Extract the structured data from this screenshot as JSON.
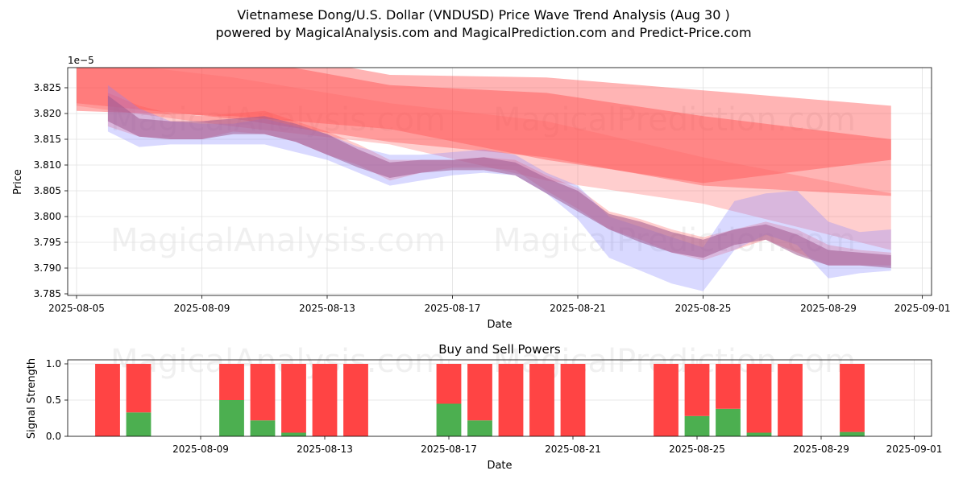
{
  "header": {
    "title": "Vietnamese Dong/U.S. Dollar (VNDUSD) Price Wave Trend Analysis (Aug 30 )",
    "subtitle": "powered by MagicalAnalysis.com and MagicalPrediction.com and Predict-Price.com"
  },
  "watermarks": [
    "MagicalAnalysis.com",
    "MagicalPrediction.com"
  ],
  "colors": {
    "sell": "#ff4444",
    "buy": "#4caf50",
    "grid": "#e0e0e0",
    "band_red": "#ff4d4d",
    "band_blue": "#8080ff"
  },
  "chart_data": [
    {
      "type": "area",
      "title": "",
      "xlabel": "Date",
      "ylabel": "Price",
      "y_offset_label": "1e−5",
      "xlim": [
        "2025-08-05",
        "2025-09-01"
      ],
      "ylim": [
        3.785,
        3.829
      ],
      "x_ticks": [
        "2025-08-05",
        "2025-08-09",
        "2025-08-13",
        "2025-08-17",
        "2025-08-21",
        "2025-08-25",
        "2025-08-29",
        "2025-09-01"
      ],
      "y_ticks": [
        "3.785",
        "3.790",
        "3.795",
        "3.800",
        "3.805",
        "3.810",
        "3.815",
        "3.820",
        "3.825"
      ],
      "grid": true,
      "long_term_bands": [
        {
          "name": "",
          "color": "#ff4d4d",
          "opacity": 0.42,
          "points": [
            [
              "2025-08-05",
              3.8335,
              3.822
            ],
            [
              "2025-08-10",
              3.833,
              3.819
            ],
            [
              "2025-08-15",
              3.8275,
              3.8145
            ],
            [
              "2025-08-20",
              3.827,
              3.8115
            ],
            [
              "2025-08-25",
              3.8245,
              3.806
            ],
            [
              "2025-08-31",
              3.8215,
              3.804
            ]
          ]
        },
        {
          "name": "",
          "color": "#ff4d4d",
          "opacity": 0.45,
          "points": [
            [
              "2025-08-05",
              3.833,
              3.8205
            ],
            [
              "2025-08-10",
              3.831,
              3.8195
            ],
            [
              "2025-08-15",
              3.8255,
              3.817
            ],
            [
              "2025-08-20",
              3.824,
              3.811
            ],
            [
              "2025-08-25",
              3.8195,
              3.8065
            ],
            [
              "2025-08-31",
              3.815,
              3.811
            ]
          ]
        },
        {
          "name": "",
          "color": "#ff6666",
          "opacity": 0.32,
          "points": [
            [
              "2025-08-05",
              3.8305,
              3.8215
            ],
            [
              "2025-08-10",
              3.827,
              3.8175
            ],
            [
              "2025-08-15",
              3.822,
              3.814
            ],
            [
              "2025-08-20",
              3.8185,
              3.807
            ],
            [
              "2025-08-25",
              3.8115,
              3.8025
            ],
            [
              "2025-08-31",
              3.8045,
              3.7935
            ]
          ]
        }
      ],
      "price_bands": [
        {
          "name": "",
          "color": "#ff4d4d",
          "opacity": 0.28,
          "points": [
            [
              "2025-08-06",
              3.824,
              3.8175
            ],
            [
              "2025-08-07",
              3.8215,
              3.8155
            ],
            [
              "2025-08-08",
              3.82,
              3.815
            ],
            [
              "2025-08-09",
              3.8195,
              3.815
            ],
            [
              "2025-08-10",
              3.82,
              3.8165
            ],
            [
              "2025-08-11",
              3.8205,
              3.816
            ],
            [
              "2025-08-12",
              3.8185,
              3.8145
            ],
            [
              "2025-08-13",
              3.8165,
              3.812
            ],
            [
              "2025-08-14",
              3.814,
              3.81
            ],
            [
              "2025-08-15",
              3.811,
              3.807
            ],
            [
              "2025-08-16",
              3.811,
              3.8085
            ],
            [
              "2025-08-17",
              3.811,
              3.8095
            ],
            [
              "2025-08-18",
              3.8115,
              3.8095
            ],
            [
              "2025-08-19",
              3.811,
              3.809
            ],
            [
              "2025-08-20",
              3.808,
              3.805
            ],
            [
              "2025-08-21",
              3.8055,
              3.8015
            ],
            [
              "2025-08-22",
              3.801,
              3.7975
            ],
            [
              "2025-08-23",
              3.7995,
              3.7955
            ],
            [
              "2025-08-24",
              3.7975,
              3.793
            ],
            [
              "2025-08-25",
              3.796,
              3.7915
            ],
            [
              "2025-08-26",
              3.7975,
              3.7935
            ],
            [
              "2025-08-27",
              3.799,
              3.7955
            ],
            [
              "2025-08-28",
              3.7975,
              3.793
            ],
            [
              "2025-08-29",
              3.7945,
              3.7905
            ],
            [
              "2025-08-30",
              3.7935,
              3.7905
            ],
            [
              "2025-08-31",
              3.793,
              3.7905
            ]
          ]
        },
        {
          "name": "",
          "color": "#8080ff",
          "opacity": 0.3,
          "points": [
            [
              "2025-08-06",
              3.8255,
              3.8165
            ],
            [
              "2025-08-07",
              3.821,
              3.8135
            ],
            [
              "2025-08-08",
              3.8185,
              3.814
            ],
            [
              "2025-08-09",
              3.818,
              3.814
            ],
            [
              "2025-08-10",
              3.818,
              3.814
            ],
            [
              "2025-08-11",
              3.819,
              3.814
            ],
            [
              "2025-08-12",
              3.8175,
              3.8125
            ],
            [
              "2025-08-13",
              3.816,
              3.811
            ],
            [
              "2025-08-14",
              3.8135,
              3.8085
            ],
            [
              "2025-08-15",
              3.812,
              3.806
            ],
            [
              "2025-08-16",
              3.812,
              3.807
            ],
            [
              "2025-08-17",
              3.8125,
              3.808
            ],
            [
              "2025-08-18",
              3.813,
              3.8085
            ],
            [
              "2025-08-19",
              3.812,
              3.808
            ],
            [
              "2025-08-20",
              3.8085,
              3.8045
            ],
            [
              "2025-08-21",
              3.806,
              3.7995
            ],
            [
              "2025-08-22",
              3.8,
              3.792
            ],
            [
              "2025-08-23",
              3.798,
              3.7895
            ],
            [
              "2025-08-24",
              3.796,
              3.787
            ],
            [
              "2025-08-25",
              3.794,
              3.7855
            ],
            [
              "2025-08-26",
              3.803,
              3.7935
            ],
            [
              "2025-08-27",
              3.8045,
              3.7965
            ],
            [
              "2025-08-28",
              3.805,
              3.7945
            ],
            [
              "2025-08-29",
              3.799,
              3.788
            ],
            [
              "2025-08-30",
              3.797,
              3.789
            ],
            [
              "2025-08-31",
              3.7975,
              3.7895
            ]
          ]
        },
        {
          "name": "",
          "color": "#a0598f",
          "opacity": 0.55,
          "points": [
            [
              "2025-08-06",
              3.8235,
              3.8185
            ],
            [
              "2025-08-07",
              3.819,
              3.8155
            ],
            [
              "2025-08-08",
              3.8185,
              3.815
            ],
            [
              "2025-08-09",
              3.8185,
              3.815
            ],
            [
              "2025-08-10",
              3.819,
              3.816
            ],
            [
              "2025-08-11",
              3.8195,
              3.816
            ],
            [
              "2025-08-12",
              3.818,
              3.8145
            ],
            [
              "2025-08-13",
              3.816,
              3.812
            ],
            [
              "2025-08-14",
              3.813,
              3.8095
            ],
            [
              "2025-08-15",
              3.8105,
              3.8075
            ],
            [
              "2025-08-16",
              3.811,
              3.8085
            ],
            [
              "2025-08-17",
              3.811,
              3.809
            ],
            [
              "2025-08-18",
              3.8115,
              3.809
            ],
            [
              "2025-08-19",
              3.8105,
              3.808
            ],
            [
              "2025-08-20",
              3.8075,
              3.8045
            ],
            [
              "2025-08-21",
              3.805,
              3.801
            ],
            [
              "2025-08-22",
              3.8005,
              3.7975
            ],
            [
              "2025-08-23",
              3.799,
              3.795
            ],
            [
              "2025-08-24",
              3.797,
              3.793
            ],
            [
              "2025-08-25",
              3.7955,
              3.792
            ],
            [
              "2025-08-26",
              3.7975,
              3.7945
            ],
            [
              "2025-08-27",
              3.7985,
              3.7955
            ],
            [
              "2025-08-28",
              3.7965,
              3.7925
            ],
            [
              "2025-08-29",
              3.7935,
              3.7905
            ],
            [
              "2025-08-30",
              3.793,
              3.7905
            ],
            [
              "2025-08-31",
              3.7925,
              3.79
            ]
          ]
        }
      ]
    },
    {
      "type": "bar",
      "title": "Buy and Sell Powers",
      "xlabel": "Date",
      "ylabel": "Signal Strength",
      "xlim": [
        "2025-08-04",
        "2025-09-01"
      ],
      "ylim": [
        0,
        1.05
      ],
      "x_ticks": [
        "2025-08-09",
        "2025-08-13",
        "2025-08-17",
        "2025-08-21",
        "2025-08-25",
        "2025-08-29",
        "2025-09-01"
      ],
      "y_ticks": [
        "0.0",
        "0.5",
        "1.0"
      ],
      "grid": true,
      "categories": [
        "2025-08-06",
        "2025-08-07",
        "2025-08-10",
        "2025-08-11",
        "2025-08-12",
        "2025-08-13",
        "2025-08-14",
        "2025-08-17",
        "2025-08-18",
        "2025-08-19",
        "2025-08-20",
        "2025-08-21",
        "2025-08-24",
        "2025-08-25",
        "2025-08-26",
        "2025-08-27",
        "2025-08-28",
        "2025-08-30"
      ],
      "series": [
        {
          "name": "",
          "color": "#4caf50",
          "values": [
            0,
            0.33,
            0.5,
            0.22,
            0.05,
            0,
            0,
            0.45,
            0.22,
            0,
            0,
            0,
            0,
            0.28,
            0.38,
            0.05,
            0,
            0.06
          ]
        },
        {
          "name": "",
          "color": "#ff4444",
          "values": [
            1,
            0.67,
            0.5,
            0.78,
            0.95,
            1,
            1,
            0.55,
            0.78,
            1,
            1,
            1,
            1,
            0.72,
            0.62,
            0.95,
            1,
            0.94
          ]
        }
      ]
    }
  ]
}
